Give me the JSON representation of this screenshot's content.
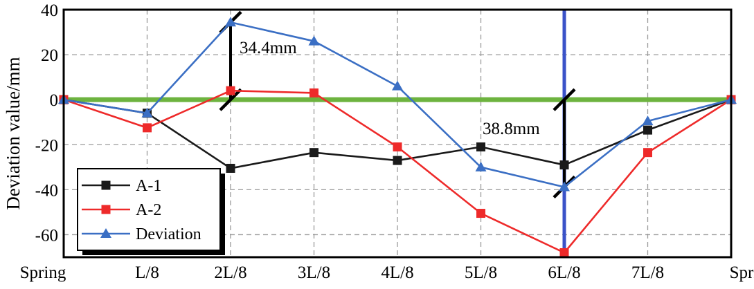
{
  "chart_data": {
    "type": "line",
    "ylabel": "Deviation value/mm",
    "xlabel": "",
    "title": "",
    "categories": [
      "Spring",
      "L/8",
      "2L/8",
      "3L/8",
      "4L/8",
      "5L/8",
      "6L/8",
      "7L/8",
      "Spring"
    ],
    "ylim": [
      -70,
      40
    ],
    "yticks": [
      40,
      20,
      0,
      -20,
      -40,
      -60
    ],
    "ytick_labels": [
      "40",
      "20",
      "0",
      "-20",
      "-40",
      "-60"
    ],
    "grid": true,
    "legend_position": "bottom-left",
    "series": [
      {
        "name": "A-1",
        "color": "#1a1a1a",
        "marker": "square",
        "values": [
          0,
          -6,
          -30.5,
          -23.5,
          -27,
          -21,
          -29,
          -13.5,
          0
        ]
      },
      {
        "name": "A-2",
        "color": "#ee2a2a",
        "marker": "square",
        "values": [
          0,
          -12.5,
          4,
          3,
          -21,
          -50.5,
          -68,
          -23.5,
          0
        ]
      },
      {
        "name": "Deviation",
        "color": "#3b6fc4",
        "marker": "triangle",
        "values": [
          0,
          -6,
          34.4,
          26,
          6,
          -30,
          -38.8,
          -9.5,
          0
        ]
      }
    ],
    "reference_lines": [
      {
        "orientation": "horizontal",
        "value": 0,
        "color": "#6db33f"
      },
      {
        "orientation": "vertical",
        "category": "6L/8",
        "color": "#3a52c8"
      }
    ],
    "annotations": [
      {
        "text": "34.4mm",
        "category": "2L/8",
        "from": 0,
        "to": 34.4
      },
      {
        "text": "38.8mm",
        "category": "6L/8",
        "from": 0,
        "to": -38.8
      }
    ]
  }
}
